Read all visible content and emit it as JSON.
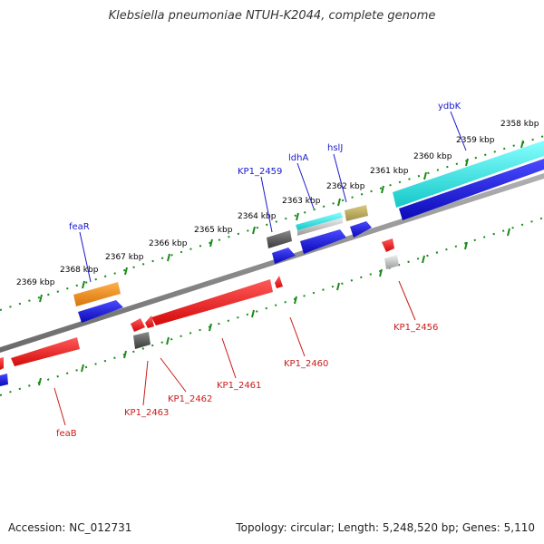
{
  "title": "Klebsiella pneumoniae NTUH-K2044, complete genome",
  "footer": {
    "accession": "Accession: NC_012731",
    "topology": "Topology: circular; Length: 5,248,520 bp; Genes: 5,110"
  },
  "colors": {
    "backbone": "#808080",
    "tick": "#1a8a1a",
    "forward_label": "#1a1acc",
    "reverse_label": "#cc1a1a"
  },
  "kbp_labels": [
    "2358 kbp",
    "2359 kbp",
    "2360 kbp",
    "2361 kbp",
    "2362 kbp",
    "2363 kbp",
    "2364 kbp",
    "2365 kbp",
    "2366 kbp",
    "2367 kbp",
    "2368 kbp",
    "2369 kbp"
  ],
  "forward_genes": [
    "ydbK",
    "hslJ",
    "ldhA",
    "KP1_2459",
    "feaR"
  ],
  "reverse_genes": [
    "KP1_2456",
    "KP1_2460",
    "KP1_2461",
    "KP1_2462",
    "KP1_2463",
    "feaB"
  ],
  "feature_colors": {
    "cyan": "#22dddd",
    "blue": "#1a1add",
    "red": "#ee1a1a",
    "orange": "#ee8a1a",
    "khaki": "#b8a860",
    "gray": "#666666",
    "lightgray": "#bbbbbb"
  }
}
